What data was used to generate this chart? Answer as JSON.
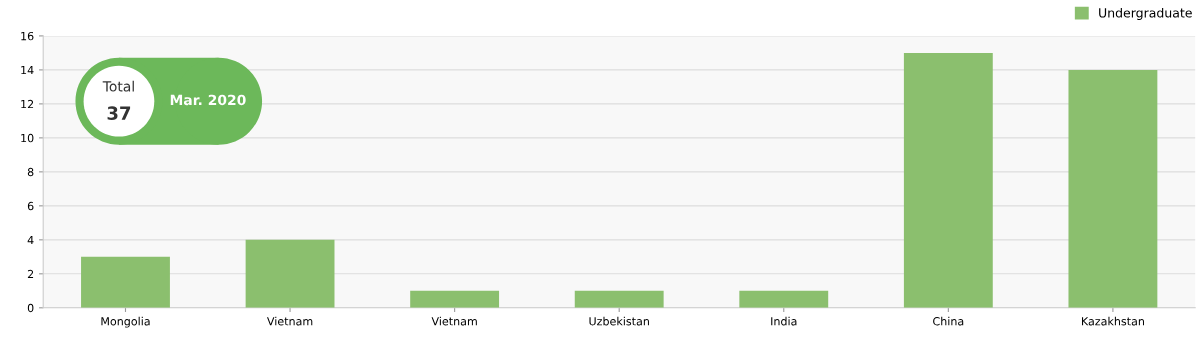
{
  "chart_data": {
    "type": "bar",
    "categories": [
      "Mongolia",
      "Vietnam",
      "Vietnam",
      "Uzbekistan",
      "India",
      "China",
      "Kazakhstan"
    ],
    "series": [
      {
        "name": "Undergraduate",
        "color": "#8bbf6e",
        "values": [
          3,
          4,
          1,
          1,
          1,
          15,
          14
        ]
      }
    ],
    "ylim": [
      0,
      16
    ],
    "yticks": [
      0,
      2,
      4,
      6,
      8,
      10,
      12,
      14,
      16
    ],
    "grid": "y",
    "legend": "top right",
    "annotations": [
      "Total",
      "37",
      "Mar. 2020"
    ]
  }
}
